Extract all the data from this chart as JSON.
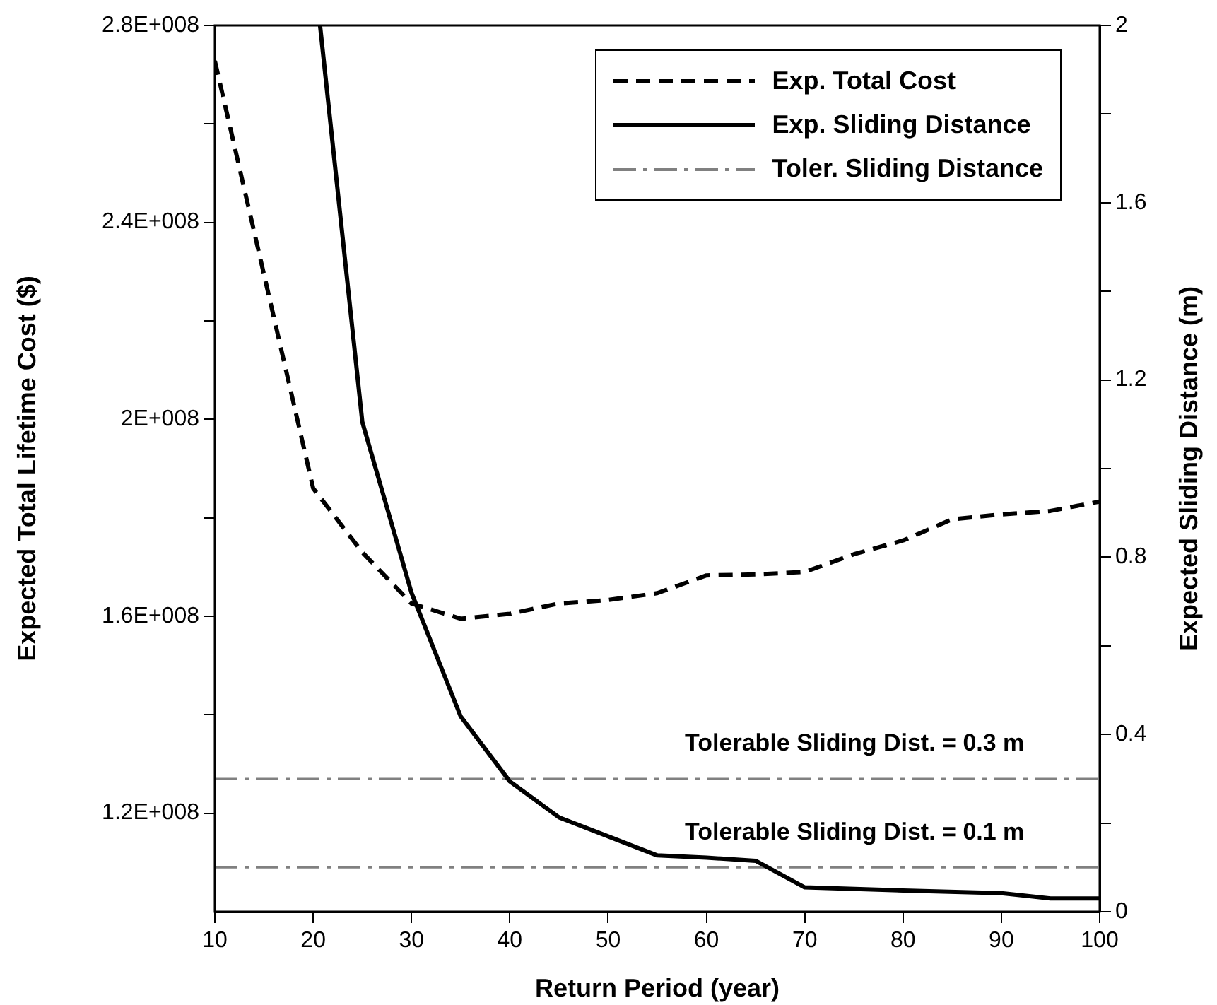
{
  "chart_data": {
    "type": "line",
    "xlabel": "Return Period (year)",
    "ylabel": "Expected Total Lifetime Cost ($)",
    "y2label": "Expected Sliding Distance (m)",
    "xlim": [
      10,
      100
    ],
    "xticks": [
      10,
      20,
      30,
      40,
      50,
      60,
      70,
      80,
      90,
      100
    ],
    "ylim": [
      100000000,
      280000000
    ],
    "yticks": [
      {
        "value": 120000000,
        "label": "1.2E+008"
      },
      {
        "value": 140000000,
        "label": null
      },
      {
        "value": 160000000,
        "label": "1.6E+008"
      },
      {
        "value": 180000000,
        "label": null
      },
      {
        "value": 200000000,
        "label": "2E+008"
      },
      {
        "value": 220000000,
        "label": null
      },
      {
        "value": 240000000,
        "label": "2.4E+008"
      },
      {
        "value": 260000000,
        "label": null
      },
      {
        "value": 280000000,
        "label": "2.8E+008"
      }
    ],
    "y2lim": [
      0,
      2
    ],
    "y2ticks": [
      0,
      {
        "value": 0.2,
        "label": null
      },
      0.4,
      {
        "value": 0.6,
        "label": null
      },
      0.8,
      {
        "value": 1.0,
        "label": null
      },
      1.2,
      {
        "value": 1.4,
        "label": null
      },
      1.6,
      {
        "value": 1.8,
        "label": null
      },
      2
    ],
    "legend": "top right",
    "marker": "none",
    "series": [
      {
        "name": "Exp. Total Cost",
        "color": "#000000",
        "line_style": "dashed",
        "axis": "y",
        "x": [
          10,
          20,
          25,
          30,
          35,
          40,
          45,
          50,
          55,
          60,
          65,
          70,
          75,
          80,
          85,
          90,
          95,
          100
        ],
        "values": [
          272800000,
          186000000,
          173000000,
          162600000,
          159500000,
          160500000,
          162600000,
          163300000,
          164700000,
          168300000,
          168500000,
          169000000,
          172600000,
          175400000,
          179700000,
          180700000,
          181400000,
          183300000
        ]
      },
      {
        "name": "Exp. Sliding Distance",
        "color": "#000000",
        "line_style": "solid",
        "axis": "y2",
        "x": [
          20.7,
          25,
          30,
          35,
          40,
          45,
          50,
          55,
          60,
          65,
          70,
          80,
          90,
          95,
          100
        ],
        "values": [
          2.0,
          1.105,
          0.72,
          0.441,
          0.294,
          0.213,
          0.17,
          0.127,
          0.122,
          0.115,
          0.055,
          0.048,
          0.042,
          0.03,
          0.03
        ]
      },
      {
        "name": "Toler. Sliding Distance",
        "color": "#808080",
        "line_style": "dashdot",
        "axis": "y2",
        "x": [
          10,
          100
        ],
        "values": [
          0.3,
          0.3
        ]
      },
      {
        "color": "#808080",
        "line_style": "dashdot",
        "axis": "y2",
        "x": [
          10,
          100
        ],
        "values": [
          0.1,
          0.1
        ]
      }
    ],
    "annotations": [
      "Tolerable Sliding Dist. = 0.3 m",
      "Tolerable Sliding Dist. = 0.1 m"
    ]
  }
}
